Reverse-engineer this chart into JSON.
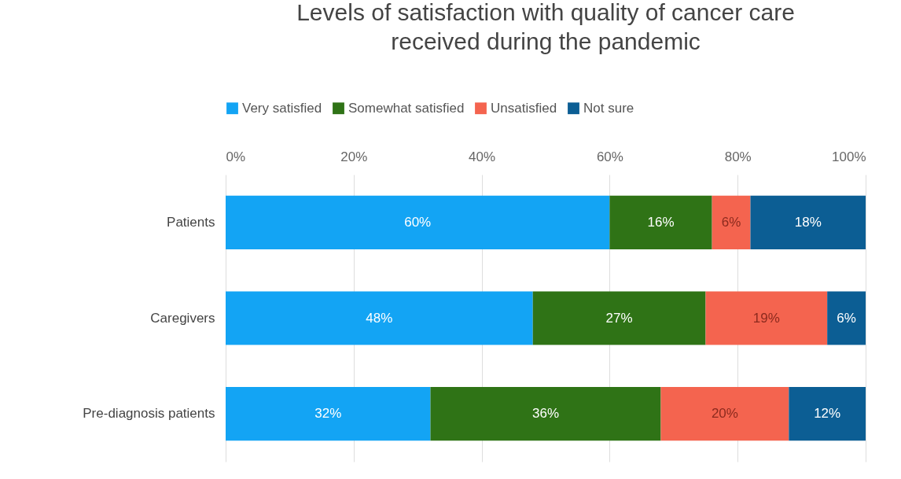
{
  "chart_data": {
    "type": "bar",
    "orientation": "horizontal",
    "stacked": true,
    "title": "Levels of satisfaction with quality of cancer care received during the pandemic",
    "categories": [
      "Patients",
      "Caregivers",
      "Pre-diagnosis patients"
    ],
    "series": [
      {
        "name": "Very satisfied",
        "color": "#13a4f4",
        "values": [
          60,
          48,
          32
        ],
        "value_labels": [
          "60%",
          "48%",
          "32%"
        ]
      },
      {
        "name": "Somewhat satisfied",
        "color": "#2f7316",
        "values": [
          16,
          27,
          36
        ],
        "value_labels": [
          "16%",
          "27%",
          "36%"
        ]
      },
      {
        "name": "Unsatisfied",
        "color": "#f4644f",
        "values": [
          6,
          19,
          20
        ],
        "value_labels": [
          "6%",
          "19%",
          "20%"
        ]
      },
      {
        "name": "Not sure",
        "color": "#0c5e94",
        "values": [
          18,
          6,
          12
        ],
        "value_labels": [
          "18%",
          "6%",
          "12%"
        ]
      }
    ],
    "xlim": [
      0,
      100
    ],
    "xticks": [
      {
        "value": 0,
        "label": "0%"
      },
      {
        "value": 20,
        "label": "20%"
      },
      {
        "value": 40,
        "label": "40%"
      },
      {
        "value": 60,
        "label": "60%"
      },
      {
        "value": 80,
        "label": "80%"
      },
      {
        "value": 100,
        "label": "100%"
      }
    ],
    "grid": true,
    "legend": "top"
  }
}
